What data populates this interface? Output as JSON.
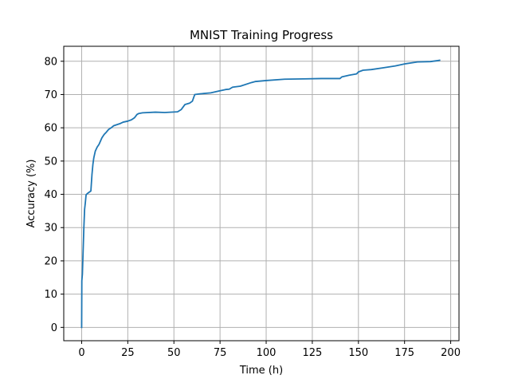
{
  "chart_data": {
    "type": "line",
    "title": "MNIST Training Progress",
    "xlabel": "Time (h)",
    "ylabel": "Accuracy (%)",
    "xlim": [
      -9.7,
      204.5
    ],
    "ylim": [
      -4.0,
      84.5
    ],
    "xticks": [
      0,
      25,
      50,
      75,
      100,
      125,
      150,
      175,
      200
    ],
    "yticks": [
      0,
      10,
      20,
      30,
      40,
      50,
      60,
      70,
      80
    ],
    "grid": true,
    "legend": "none",
    "series": [
      {
        "color": "#1f77b4",
        "x": [
          0,
          0.1,
          0.4,
          0.8,
          1.2,
          1.6,
          2.0,
          2.4,
          3.0,
          4.0,
          5.0,
          5.6,
          6.1,
          6.6,
          7.4,
          8.4,
          9.4,
          11.0,
          12.2,
          13.4,
          14.6,
          16.0,
          17.3,
          19.4,
          21.0,
          22.5,
          25.0,
          27.0,
          28.6,
          30.0,
          31.0,
          33.0,
          40.0,
          45.0,
          52.0,
          54.0,
          56.0,
          58.5,
          60.0,
          61.3,
          64.0,
          70.0,
          74.0,
          78.0,
          80.0,
          81.8,
          86.0,
          92.0,
          94.0,
          100.0,
          110.0,
          120.0,
          130.0,
          140.0,
          141.0,
          145.0,
          149.0,
          150.0,
          152.5,
          157.0,
          163.0,
          170.0,
          175.0,
          182.0,
          189.0,
          193.0,
          194.0
        ],
        "y": [
          0,
          14.0,
          16.0,
          23.0,
          30.0,
          35.5,
          37.5,
          39.8,
          40.2,
          40.6,
          41.0,
          46.0,
          49.0,
          51.0,
          53.0,
          54.2,
          55.0,
          57.0,
          58.0,
          58.7,
          59.5,
          60.0,
          60.6,
          61.0,
          61.3,
          61.7,
          62.0,
          62.4,
          63.0,
          64.0,
          64.3,
          64.5,
          64.7,
          64.6,
          64.8,
          65.5,
          67.0,
          67.4,
          68.0,
          70.0,
          70.2,
          70.5,
          71.0,
          71.5,
          71.6,
          72.2,
          72.5,
          73.6,
          73.9,
          74.2,
          74.6,
          74.7,
          74.8,
          74.8,
          75.3,
          75.8,
          76.2,
          76.8,
          77.3,
          77.5,
          78.0,
          78.6,
          79.2,
          79.8,
          79.9,
          80.2,
          80.3
        ]
      }
    ]
  }
}
